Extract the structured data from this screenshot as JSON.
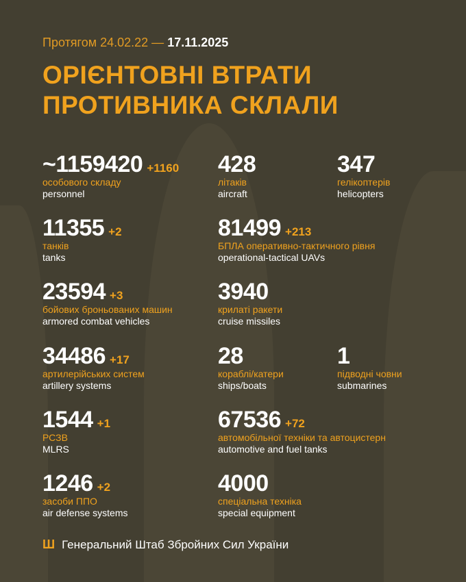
{
  "header": {
    "period_prefix": "Протягом 24.02.22 —",
    "period_end": "17.11.2025",
    "title_line1": "ОРІЄНТОВНІ ВТРАТИ",
    "title_line2": "ПРОТИВНИКА СКЛАЛИ"
  },
  "colors": {
    "background": "#433f31",
    "accent": "#f0a21e",
    "text": "#ffffff"
  },
  "stats": [
    {
      "value": "~1159420",
      "delta": "+1160",
      "ua": "особового складу",
      "en": "personnel"
    },
    {
      "value": "428",
      "delta": "",
      "ua": "літаків",
      "en": "aircraft"
    },
    {
      "value": "347",
      "delta": "",
      "ua": "гелікоптерів",
      "en": "helicopters"
    },
    {
      "value": "11355",
      "delta": "+2",
      "ua": "танків",
      "en": "tanks"
    },
    {
      "value": "81499",
      "delta": "+213",
      "ua": "БПЛА оперативно-тактичного рівня",
      "en": "operational-tactical UAVs"
    },
    {
      "value": "23594",
      "delta": "+3",
      "ua": "бойових броньованих машин",
      "en": "armored combat vehicles"
    },
    {
      "value": "3940",
      "delta": "",
      "ua": "крилаті ракети",
      "en": "cruise missiles"
    },
    {
      "value": "34486",
      "delta": "+17",
      "ua": "артилерійських систем",
      "en": "artillery systems"
    },
    {
      "value": "28",
      "delta": "",
      "ua": "кораблі/катери",
      "en": "ships/boats"
    },
    {
      "value": "1",
      "delta": "",
      "ua": "підводні човни",
      "en": "submarines"
    },
    {
      "value": "1544",
      "delta": "+1",
      "ua": "РСЗВ",
      "en": "MLRS"
    },
    {
      "value": "67536",
      "delta": "+72",
      "ua": "автомобільної техніки та автоцистерн",
      "en": "automotive and fuel tanks"
    },
    {
      "value": "1246",
      "delta": "+2",
      "ua": "засоби ППО",
      "en": "air defense systems"
    },
    {
      "value": "4000",
      "delta": "",
      "ua": "спеціальна техніка",
      "en": "special equipment"
    }
  ],
  "footer": {
    "icon": "trident-icon",
    "text": "Генеральний Штаб Збройних Сил України"
  }
}
